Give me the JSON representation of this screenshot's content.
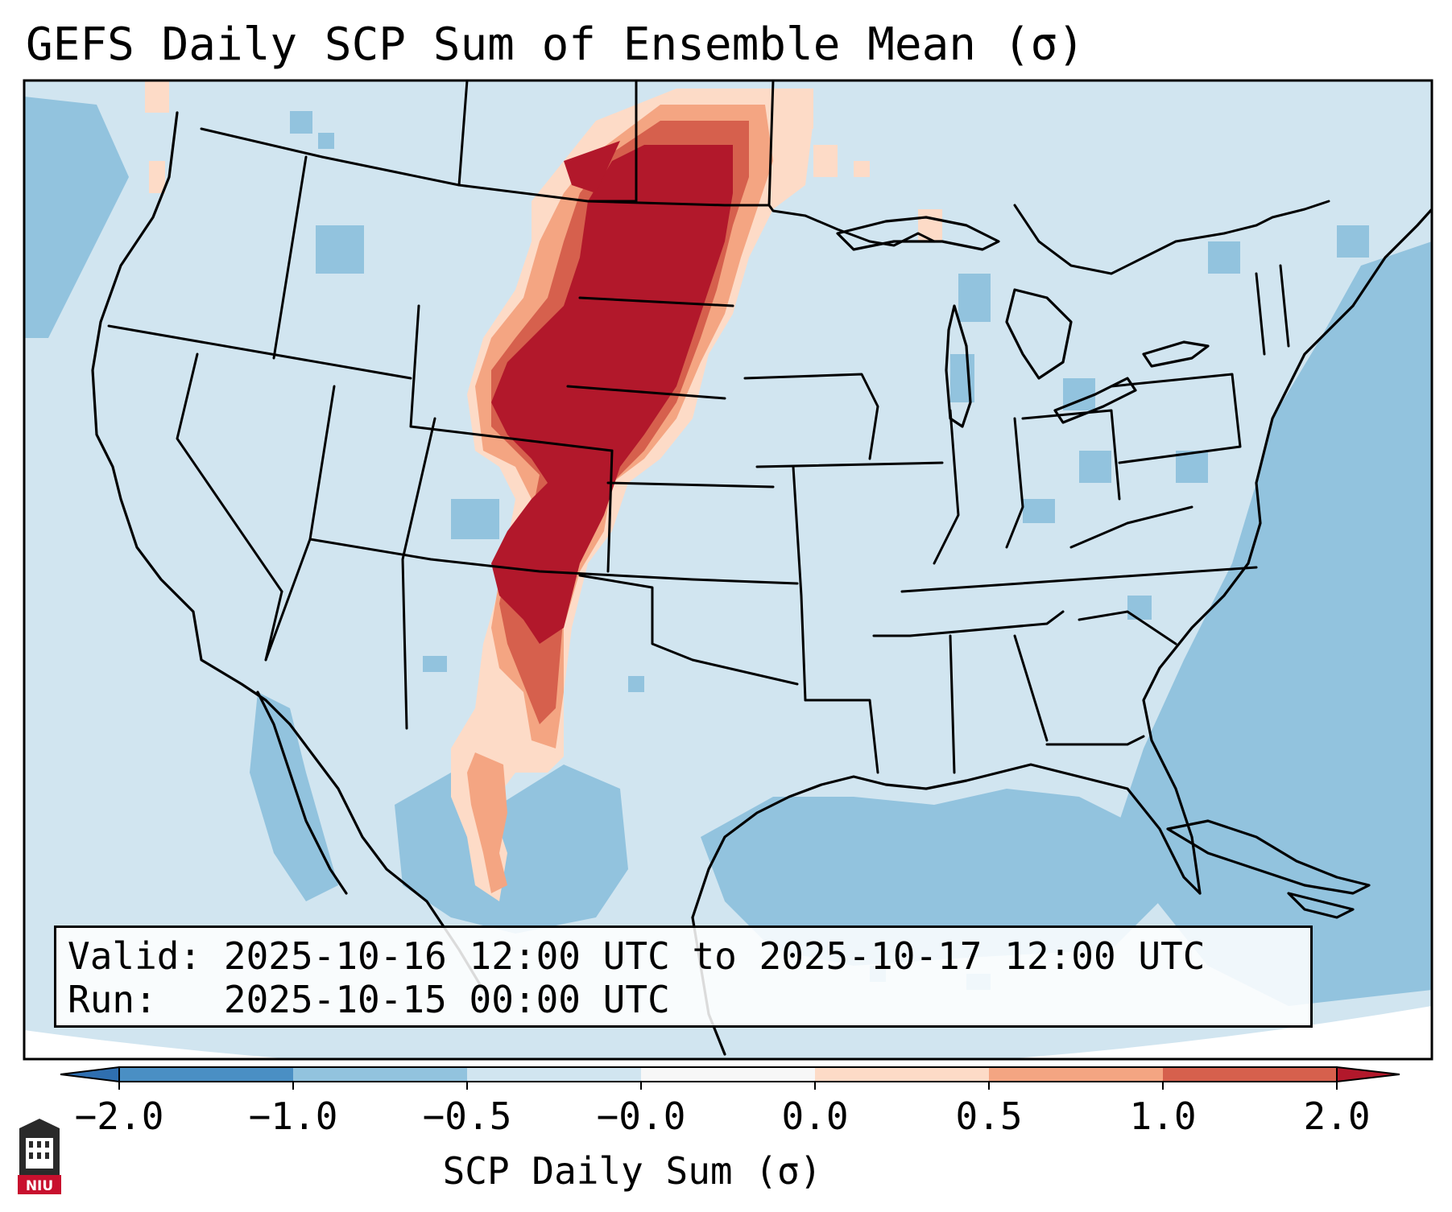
{
  "title": "GEFS Daily SCP Sum of Ensemble Mean (σ)",
  "info": {
    "valid_label": "Valid:",
    "valid_value": "2025-10-16 12:00 UTC to 2025-10-17 12:00 UTC",
    "run_label": "Run:",
    "run_value": "2025-10-15 00:00 UTC"
  },
  "colorbar": {
    "label": "SCP Daily Sum (σ)",
    "ticks": [
      "−2.0",
      "−1.0",
      "−0.5",
      "−0.0",
      "0.0",
      "0.5",
      "1.0",
      "2.0"
    ],
    "bins": [
      {
        "range": "< -2.0",
        "color": "#2f6fb0"
      },
      {
        "range": "-2.0 to -1.0",
        "color": "#4a8fc4"
      },
      {
        "range": "-1.0 to -0.5",
        "color": "#92c3de"
      },
      {
        "range": "-0.5 to -0.0",
        "color": "#d1e5f0"
      },
      {
        "range": "-0.0 to 0.0",
        "color": "#f7f7f7"
      },
      {
        "range": "0.0 to 0.5",
        "color": "#fddbc7"
      },
      {
        "range": "0.5 to 1.0",
        "color": "#f4a582"
      },
      {
        "range": "1.0 to 2.0",
        "color": "#d6604d"
      },
      {
        "range": "> 2.0",
        "color": "#b2182b"
      }
    ]
  },
  "logo": {
    "text": "NIU"
  },
  "colors": {
    "background_field": "#d1e5f0",
    "ocean_negative": "#92c3de",
    "signal_max": "#b2182b"
  }
}
